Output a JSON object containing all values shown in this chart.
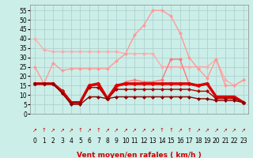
{
  "background_color": "#cceee8",
  "grid_color": "#aacccc",
  "xlabel": "Vent moyen/en rafales ( km/h )",
  "xlabel_color": "#cc0000",
  "ylabel_ticks": [
    0,
    5,
    10,
    15,
    20,
    25,
    30,
    35,
    40,
    45,
    50,
    55
  ],
  "x_labels": [
    "0",
    "1",
    "2",
    "3",
    "4",
    "5",
    "6",
    "7",
    "8",
    "9",
    "10",
    "11",
    "12",
    "13",
    "14",
    "15",
    "16",
    "17",
    "18",
    "19",
    "20",
    "21",
    "22",
    "23"
  ],
  "series": [
    {
      "color": "#ffaaaa",
      "linewidth": 1.0,
      "marker": "D",
      "markersize": 2,
      "values": [
        40,
        34,
        33,
        33,
        33,
        33,
        33,
        33,
        33,
        33,
        32,
        32,
        32,
        32,
        25,
        25,
        25,
        25,
        25,
        25,
        29,
        18,
        15,
        18
      ]
    },
    {
      "color": "#ff9999",
      "linewidth": 1.0,
      "marker": "D",
      "markersize": 2,
      "values": [
        25,
        16,
        27,
        23,
        24,
        24,
        24,
        24,
        24,
        28,
        32,
        42,
        47,
        55,
        55,
        52,
        43,
        30,
        24,
        19,
        29,
        15,
        15,
        18
      ]
    },
    {
      "color": "#ff7777",
      "linewidth": 1.0,
      "marker": "D",
      "markersize": 2,
      "values": [
        16,
        16,
        16,
        12,
        6,
        6,
        15,
        15,
        8,
        14,
        17,
        18,
        17,
        17,
        18,
        29,
        29,
        16,
        15,
        16,
        9,
        9,
        9,
        6
      ]
    },
    {
      "color": "#dd0000",
      "linewidth": 2.5,
      "marker": "D",
      "markersize": 2.5,
      "values": [
        16,
        16,
        16,
        12,
        6,
        6,
        15,
        16,
        8,
        15,
        16,
        16,
        16,
        16,
        16,
        16,
        16,
        16,
        15,
        16,
        9,
        9,
        9,
        6
      ]
    },
    {
      "color": "#aa0000",
      "linewidth": 1.0,
      "marker": "D",
      "markersize": 2,
      "values": [
        16,
        16,
        16,
        11,
        6,
        6,
        14,
        14,
        8,
        13,
        13,
        13,
        13,
        13,
        13,
        13,
        13,
        13,
        12,
        12,
        8,
        8,
        8,
        6
      ]
    },
    {
      "color": "#880000",
      "linewidth": 1.0,
      "marker": "D",
      "markersize": 2,
      "values": [
        16,
        16,
        16,
        11,
        5,
        5,
        9,
        9,
        8,
        9,
        9,
        9,
        9,
        9,
        9,
        9,
        9,
        9,
        8,
        8,
        7,
        7,
        7,
        6
      ]
    }
  ],
  "wind_arrows": [
    "↗",
    "↑",
    "↗",
    "↗",
    "↗",
    "↑",
    "↗",
    "↑",
    "↗",
    "↗",
    "↗",
    "↗",
    "↗",
    "↗",
    "↑",
    "↑",
    "↗",
    "↑",
    "↗",
    "↗",
    "↗",
    "↗",
    "↗",
    "↗"
  ],
  "wind_arrow_color": "#cc0000"
}
